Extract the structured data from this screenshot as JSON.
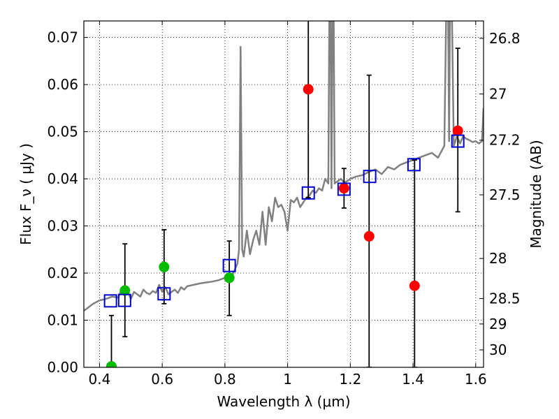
{
  "chart_data": {
    "type": "scatter",
    "title": "",
    "xlabel": "Wavelength  λ (μm)",
    "ylabel": "Flux  F_ν  ( μJy )",
    "ylabel_right": "Magnitude (AB)",
    "xlim": [
      0.35,
      1.625
    ],
    "ylim": [
      0.0,
      0.0735
    ],
    "grid": true,
    "x_ticks": [
      0.4,
      0.6,
      0.8,
      1.0,
      1.2,
      1.4,
      1.6
    ],
    "x_tick_labels": [
      "0.4",
      "0.6",
      "0.8",
      "1",
      "1.2",
      "1.4",
      "1.6"
    ],
    "y_ticks": [
      0.0,
      0.01,
      0.02,
      0.03,
      0.04,
      0.05,
      0.06,
      0.07
    ],
    "y_tick_labels": [
      "0.00",
      "0.01",
      "0.02",
      "0.03",
      "0.04",
      "0.05",
      "0.06",
      "0.07"
    ],
    "right_ticks": [
      {
        "label": "26.8",
        "flux": 0.0698
      },
      {
        "label": "27",
        "flux": 0.058
      },
      {
        "label": "27.2",
        "flux": 0.0482
      },
      {
        "label": "27.5",
        "flux": 0.0366
      },
      {
        "label": "28",
        "flux": 0.0231
      },
      {
        "label": "28.5",
        "flux": 0.0146
      },
      {
        "label": "29",
        "flux": 0.0092
      },
      {
        "label": "30",
        "flux": 0.0037
      }
    ],
    "spectrum": {
      "name": "model spectrum",
      "color": "#808080",
      "x": [
        0.35,
        0.37,
        0.38,
        0.4,
        0.42,
        0.44,
        0.46,
        0.47,
        0.48,
        0.49,
        0.5,
        0.51,
        0.52,
        0.53,
        0.54,
        0.55,
        0.56,
        0.57,
        0.58,
        0.59,
        0.6,
        0.61,
        0.62,
        0.63,
        0.64,
        0.65,
        0.66,
        0.67,
        0.68,
        0.7,
        0.72,
        0.74,
        0.76,
        0.78,
        0.8,
        0.81,
        0.82,
        0.83,
        0.84,
        0.845,
        0.85,
        0.855,
        0.86,
        0.87,
        0.88,
        0.89,
        0.9,
        0.91,
        0.92,
        0.93,
        0.94,
        0.95,
        0.96,
        0.97,
        0.98,
        0.99,
        1.0,
        1.01,
        1.02,
        1.03,
        1.04,
        1.05,
        1.06,
        1.07,
        1.08,
        1.09,
        1.1,
        1.11,
        1.12,
        1.13,
        1.135,
        1.14,
        1.145,
        1.15,
        1.16,
        1.17,
        1.18,
        1.19,
        1.2,
        1.22,
        1.24,
        1.26,
        1.28,
        1.3,
        1.32,
        1.34,
        1.36,
        1.38,
        1.4,
        1.42,
        1.44,
        1.46,
        1.48,
        1.5,
        1.51,
        1.515,
        1.52,
        1.53,
        1.54,
        1.55,
        1.56,
        1.57,
        1.58,
        1.59,
        1.6,
        1.61,
        1.62,
        1.625
      ],
      "y": [
        0.012,
        0.013,
        0.0135,
        0.0142,
        0.0145,
        0.015,
        0.0148,
        0.0165,
        0.0152,
        0.016,
        0.0145,
        0.016,
        0.0155,
        0.015,
        0.0165,
        0.0158,
        0.0155,
        0.0162,
        0.0158,
        0.0175,
        0.016,
        0.017,
        0.0155,
        0.016,
        0.0165,
        0.0158,
        0.017,
        0.0165,
        0.0172,
        0.0175,
        0.0178,
        0.018,
        0.0182,
        0.0185,
        0.019,
        0.0195,
        0.019,
        0.0205,
        0.022,
        0.025,
        0.068,
        0.025,
        0.0235,
        0.029,
        0.024,
        0.027,
        0.029,
        0.026,
        0.033,
        0.026,
        0.034,
        0.031,
        0.036,
        0.034,
        0.0345,
        0.033,
        0.029,
        0.0355,
        0.035,
        0.036,
        0.034,
        0.035,
        0.036,
        0.0365,
        0.0375,
        0.037,
        0.038,
        0.0375,
        0.04,
        0.039,
        0.098,
        0.038,
        0.098,
        0.039,
        0.0395,
        0.04,
        0.0392,
        0.0395,
        0.04,
        0.0405,
        0.0408,
        0.0415,
        0.042,
        0.041,
        0.0425,
        0.042,
        0.043,
        0.0435,
        0.044,
        0.0445,
        0.045,
        0.0455,
        0.0445,
        0.047,
        0.095,
        0.048,
        0.095,
        0.047,
        0.049,
        0.0475,
        0.049,
        0.0485,
        0.0482,
        0.0478,
        0.048,
        0.0475,
        0.048,
        0.055
      ]
    },
    "series": [
      {
        "name": "green points",
        "color": "#00bb00",
        "marker": "circle",
        "points": [
          {
            "x": 0.438,
            "y": 0.0002
          },
          {
            "x": 0.481,
            "y": 0.0163
          },
          {
            "x": 0.606,
            "y": 0.0213
          },
          {
            "x": 0.814,
            "y": 0.019
          }
        ]
      },
      {
        "name": "red points",
        "color": "#ff0000",
        "marker": "circle",
        "points": [
          {
            "x": 1.066,
            "y": 0.059
          },
          {
            "x": 1.18,
            "y": 0.038
          },
          {
            "x": 1.26,
            "y": 0.0278
          },
          {
            "x": 1.405,
            "y": 0.0173
          },
          {
            "x": 1.543,
            "y": 0.0502
          }
        ]
      },
      {
        "name": "model photometry",
        "color": "#0000cc",
        "marker": "open-square",
        "points": [
          {
            "x": 0.435,
            "y": 0.0141
          },
          {
            "x": 0.48,
            "y": 0.0142
          },
          {
            "x": 0.606,
            "y": 0.0156
          },
          {
            "x": 0.814,
            "y": 0.0216
          },
          {
            "x": 1.066,
            "y": 0.037
          },
          {
            "x": 1.18,
            "y": 0.0378
          },
          {
            "x": 1.262,
            "y": 0.0405
          },
          {
            "x": 1.403,
            "y": 0.043
          },
          {
            "x": 1.543,
            "y": 0.048
          }
        ]
      }
    ],
    "error_bars": [
      {
        "x": 0.438,
        "low": 0.0,
        "high": 0.011
      },
      {
        "x": 0.481,
        "low": 0.0065,
        "high": 0.0262
      },
      {
        "x": 0.606,
        "low": 0.0135,
        "high": 0.0292
      },
      {
        "x": 0.814,
        "low": 0.011,
        "high": 0.0268
      },
      {
        "x": 1.066,
        "low": 0.036,
        "high": 0.074
      },
      {
        "x": 1.18,
        "low": 0.0338,
        "high": 0.0422
      },
      {
        "x": 1.26,
        "low": 0.0,
        "high": 0.062
      },
      {
        "x": 1.405,
        "low": 0.0,
        "high": 0.044
      },
      {
        "x": 1.543,
        "low": 0.033,
        "high": 0.0677
      }
    ]
  }
}
